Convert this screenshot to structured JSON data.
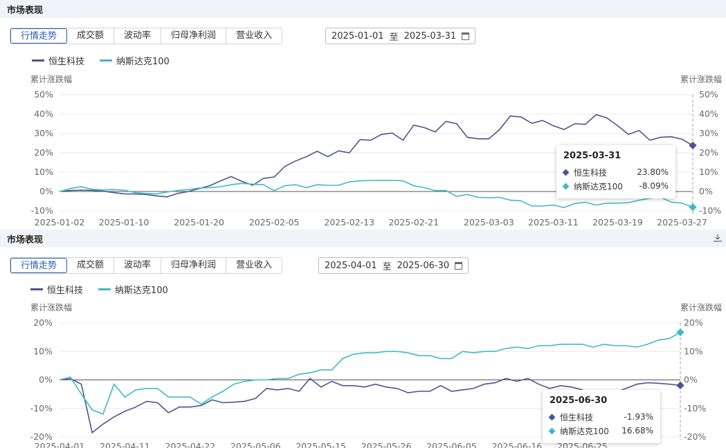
{
  "colors": {
    "hstech": "#4a5491",
    "nasdaq": "#3fb8c8",
    "grid": "#e8e8e8",
    "axis": "#888888"
  },
  "panels": [
    {
      "header": "市场表现",
      "tabs": [
        "行情走势",
        "成交额",
        "波动率",
        "归母净利润",
        "营业收入"
      ],
      "active_tab": 0,
      "date_from": "2025-01-01",
      "date_sep": "至",
      "date_to": "2025-03-31",
      "legend": [
        "恒生科技",
        "纳斯达克100"
      ],
      "tooltip": {
        "date": "2025-03-31",
        "rows": [
          {
            "name": "恒生科技",
            "value": "23.80%"
          },
          {
            "name": "纳斯达克100",
            "value": "-8.09%"
          }
        ]
      },
      "chart_data": {
        "type": "line",
        "ylabel_left": "累计涨跌幅",
        "ylabel_right": "累计涨跌幅",
        "ylim": [
          -10,
          50
        ],
        "yticks": [
          -10,
          0,
          10,
          20,
          30,
          40,
          50
        ],
        "ytick_labels": [
          "-10%",
          "0%",
          "10%",
          "20%",
          "30%",
          "40%",
          "50%"
        ],
        "xtick_labels": [
          "2025-01-02",
          "2025-01-10",
          "2025-01-20",
          "2025-02-05",
          "2025-02-13",
          "2025-02-21",
          "2025-03-03",
          "2025-03-11",
          "2025-03-19",
          "2025-03-27"
        ],
        "xtick_index": [
          0,
          6,
          13,
          20,
          27,
          33,
          40,
          46,
          52,
          58
        ],
        "series": [
          {
            "name": "恒生科技",
            "values": [
              0,
              0.5,
              0.7,
              0.6,
              0.2,
              -0.5,
              -1.2,
              -1.3,
              -1.5,
              -2.2,
              -2.8,
              -1.0,
              0.0,
              1.5,
              3.0,
              5.5,
              7.7,
              5.2,
              3.2,
              6.8,
              7.5,
              13.0,
              15.8,
              18.0,
              20.8,
              18.0,
              21.0,
              20.0,
              26.8,
              26.5,
              29.5,
              30.2,
              26.5,
              34.3,
              33.0,
              30.8,
              36.2,
              35.0,
              28.0,
              27.2,
              27.2,
              32.0,
              39.0,
              38.5,
              35.2,
              36.7,
              34.0,
              32.0,
              35.0,
              34.7,
              39.7,
              38.0,
              34.0,
              29.5,
              31.5,
              26.5,
              28.0,
              28.3,
              27.0,
              23.8
            ]
          },
          {
            "name": "纳斯达克100",
            "values": [
              0,
              1.5,
              2.5,
              1.2,
              0.8,
              1.0,
              0.7,
              -0.5,
              -1.0,
              -1.3,
              -0.3,
              0.5,
              1.0,
              1.8,
              2.0,
              2.5,
              3.5,
              4.2,
              3.8,
              3.5,
              0.5,
              3.0,
              3.5,
              2.0,
              3.5,
              3.2,
              3.2,
              5.0,
              5.5,
              5.7,
              5.8,
              5.8,
              5.5,
              3.0,
              2.0,
              0.5,
              0.5,
              -2.5,
              -1.5,
              -3.0,
              -3.2,
              -3.0,
              -4.5,
              -4.8,
              -7.5,
              -7.5,
              -7.0,
              -8.3,
              -6.2,
              -5.5,
              -7.0,
              -6.0,
              -6.0,
              -5.8,
              -4.5,
              -3.5,
              -3.0,
              -5.5,
              -6.0,
              -8.09
            ]
          }
        ]
      }
    },
    {
      "header": "市场表现",
      "tabs": [
        "行情走势",
        "成交额",
        "波动率",
        "归母净利润",
        "营业收入"
      ],
      "active_tab": 0,
      "date_from": "2025-04-01",
      "date_sep": "至",
      "date_to": "2025-06-30",
      "legend": [
        "恒生科技",
        "纳斯达克100"
      ],
      "tooltip": {
        "date": "2025-06-30",
        "rows": [
          {
            "name": "恒生科技",
            "value": "-1.93%"
          },
          {
            "name": "纳斯达克100",
            "value": "16.68%"
          }
        ]
      },
      "chart_data": {
        "type": "line",
        "ylabel_left": "累计涨跌幅",
        "ylabel_right": "累计涨跌幅",
        "ylim": [
          -20,
          20
        ],
        "yticks": [
          -20,
          -10,
          0,
          10,
          20
        ],
        "ytick_labels": [
          "-20%",
          "-10%",
          "0%",
          "10%",
          "20%"
        ],
        "xtick_labels": [
          "2025-04-01",
          "2025-04-11",
          "2025-04-22",
          "2025-05-06",
          "2025-05-15",
          "2025-05-26",
          "2025-06-05",
          "2025-06-16",
          "2025-06-25"
        ],
        "xtick_index": [
          0,
          6,
          12,
          18,
          24,
          30,
          36,
          42,
          48
        ],
        "series": [
          {
            "name": "恒生科技",
            "values": [
              0,
              0.5,
              -1.5,
              -18.5,
              -15.5,
              -13.0,
              -11.0,
              -9.5,
              -7.5,
              -8.0,
              -11.5,
              -9.5,
              -9.5,
              -9.0,
              -7.0,
              -8.0,
              -7.8,
              -7.5,
              -6.5,
              -3.0,
              -3.5,
              -3.0,
              -4.0,
              0.5,
              -2.5,
              -0.5,
              -2.0,
              -2.0,
              -2.5,
              -1.5,
              -2.5,
              -3.0,
              -4.5,
              -4.0,
              -4.0,
              -2.0,
              -4.0,
              -3.5,
              -3.0,
              -1.5,
              -1.0,
              0.5,
              -0.5,
              0.5,
              -1.5,
              -3.0,
              -2.0,
              -2.5,
              -3.5,
              -5.5,
              -5.0,
              -4.5,
              -3.0,
              -1.5,
              -1.0,
              -1.2,
              -1.5,
              -1.93
            ]
          },
          {
            "name": "纳斯达克100",
            "values": [
              0,
              1.0,
              -5.0,
              -10.5,
              -12.0,
              -1.5,
              -6.0,
              -3.5,
              -3.0,
              -3.0,
              -6.0,
              -6.0,
              -6.0,
              -8.5,
              -6.0,
              -4.0,
              -1.5,
              -0.5,
              0.0,
              0.0,
              0.5,
              0.5,
              2.0,
              2.5,
              3.5,
              3.5,
              7.5,
              9.0,
              9.5,
              9.5,
              10.0,
              10.0,
              9.5,
              8.5,
              8.5,
              7.5,
              7.5,
              10.0,
              9.5,
              10.0,
              10.0,
              11.0,
              11.5,
              11.0,
              12.0,
              12.0,
              12.5,
              12.5,
              12.5,
              11.5,
              12.5,
              12.0,
              12.0,
              11.5,
              12.5,
              14.0,
              14.5,
              16.68
            ]
          }
        ]
      }
    }
  ]
}
